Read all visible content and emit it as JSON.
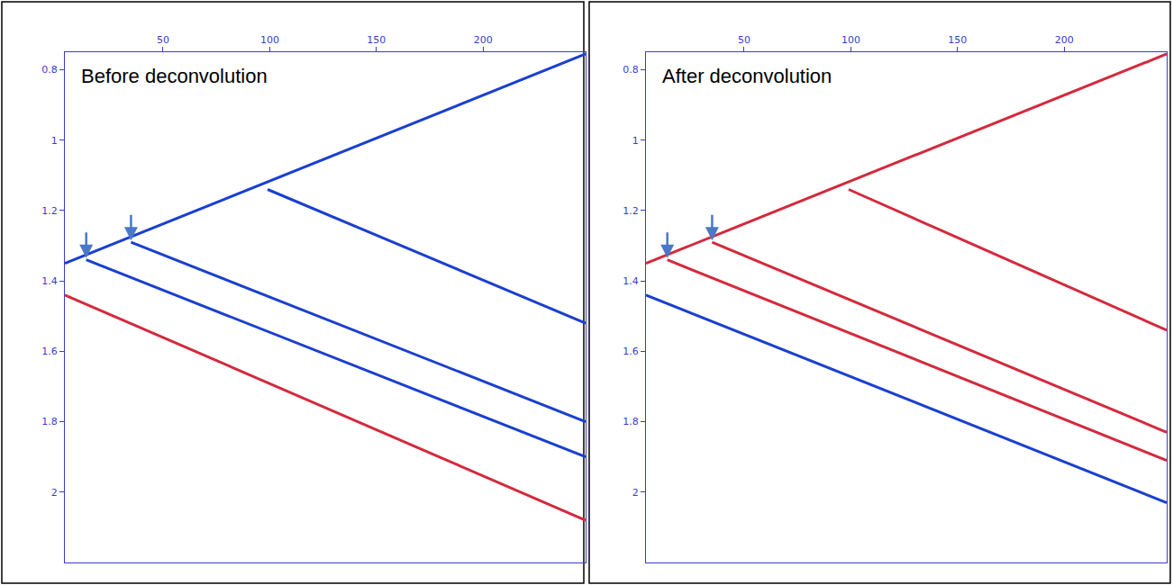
{
  "chart_data": [
    {
      "type": "line",
      "title": "Before deconvolution",
      "xlim": [
        4,
        248
      ],
      "xticks": [
        50,
        100,
        150,
        200
      ],
      "ylim": [
        2.2,
        0.75
      ],
      "yticks": [
        0.8,
        1,
        1.2,
        1.4,
        1.6,
        1.8,
        2
      ],
      "grid": false,
      "series": [
        {
          "color": "#1a3fd0",
          "x": [
            4,
            248
          ],
          "values": [
            1.35,
            0.755
          ]
        },
        {
          "color": "#1a3fd0",
          "marker": "arrow",
          "x": [
            35,
            248
          ],
          "values": [
            1.29,
            1.8
          ]
        },
        {
          "color": "#1a3fd0",
          "marker": "arrow",
          "x": [
            14,
            248
          ],
          "values": [
            1.34,
            1.9
          ]
        },
        {
          "color": "#1a3fd0",
          "x": [
            99,
            248
          ],
          "values": [
            1.14,
            1.52
          ]
        },
        {
          "color": "#d42a3c",
          "x": [
            4,
            248
          ],
          "values": [
            1.44,
            2.08
          ]
        }
      ]
    },
    {
      "type": "line",
      "title": "After deconvolution",
      "xlim": [
        4,
        248
      ],
      "xticks": [
        50,
        100,
        150,
        200
      ],
      "ylim": [
        2.2,
        0.75
      ],
      "yticks": [
        0.8,
        1,
        1.2,
        1.4,
        1.6,
        1.8,
        2
      ],
      "grid": false,
      "series": [
        {
          "color": "#d42a3c",
          "x": [
            4,
            248
          ],
          "values": [
            1.35,
            0.755
          ]
        },
        {
          "color": "#d42a3c",
          "marker": "arrow",
          "x": [
            35,
            248
          ],
          "values": [
            1.29,
            1.83
          ]
        },
        {
          "color": "#d42a3c",
          "marker": "arrow",
          "x": [
            14,
            248
          ],
          "values": [
            1.34,
            1.91
          ]
        },
        {
          "color": "#d42a3c",
          "x": [
            99,
            248
          ],
          "values": [
            1.14,
            1.54
          ]
        },
        {
          "color": "#1a3fd0",
          "x": [
            4,
            248
          ],
          "values": [
            1.44,
            2.03
          ]
        }
      ]
    }
  ]
}
